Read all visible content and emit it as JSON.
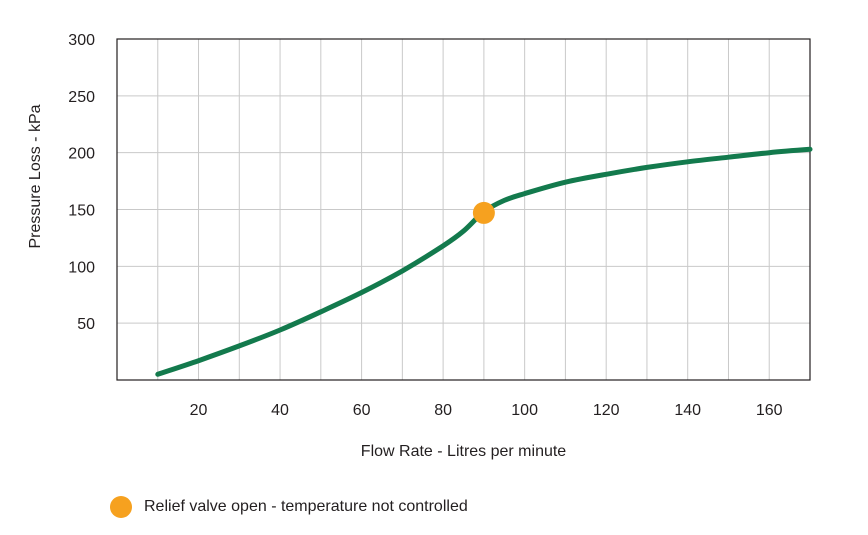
{
  "chart_data": {
    "type": "line",
    "xlabel": "Flow Rate - Litres per minute",
    "ylabel": "Pressure Loss - kPa",
    "xlim": [
      0,
      170
    ],
    "ylim": [
      0,
      300
    ],
    "x_ticks": [
      20,
      40,
      60,
      80,
      100,
      120,
      140,
      160
    ],
    "y_ticks": [
      50,
      100,
      150,
      200,
      250,
      300
    ],
    "x_grid_step": 10,
    "y_grid_step": 50,
    "grid": true,
    "series": [
      {
        "color": "#137a4d",
        "x": [
          10,
          20,
          30,
          40,
          50,
          60,
          70,
          80,
          85,
          90,
          95,
          100,
          110,
          120,
          130,
          140,
          150,
          160,
          170
        ],
        "y": [
          5,
          17,
          30,
          44,
          60,
          77,
          96,
          118,
          131,
          148,
          158,
          164,
          174,
          181,
          187,
          192,
          196,
          200,
          203
        ]
      }
    ],
    "marker": {
      "x": 90,
      "y": 147,
      "color": "#f6a11f"
    },
    "legend": {
      "position": "bottom-left",
      "label": "Relief valve open - temperature not controlled",
      "color": "#f6a11f"
    }
  }
}
